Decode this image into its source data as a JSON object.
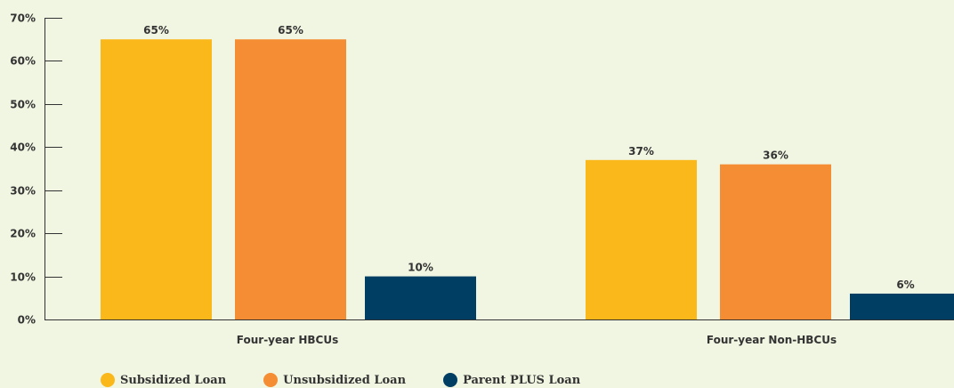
{
  "chart_data": {
    "type": "bar",
    "title": "",
    "xlabel": "",
    "ylabel": "",
    "ylim": [
      0,
      70
    ],
    "yticks": [
      "0%",
      "10%",
      "20%",
      "30%",
      "40%",
      "50%",
      "60%",
      "70%"
    ],
    "categories": [
      "Four-year HBCUs",
      "Four-year Non-HBCUs"
    ],
    "series": [
      {
        "name": "Subsidized Loan",
        "color": "#fbb81a",
        "values": [
          65,
          37
        ],
        "labels": [
          "65%",
          "37%"
        ]
      },
      {
        "name": "Unsubsidized Loan",
        "color": "#f48d34",
        "values": [
          65,
          36
        ],
        "labels": [
          "65%",
          "36%"
        ]
      },
      {
        "name": "Parent PLUS Loan",
        "color": "#003f63",
        "values": [
          10,
          6
        ],
        "labels": [
          "10%",
          "6%"
        ]
      }
    ],
    "grid": false,
    "legend_position": "bottom-left"
  }
}
